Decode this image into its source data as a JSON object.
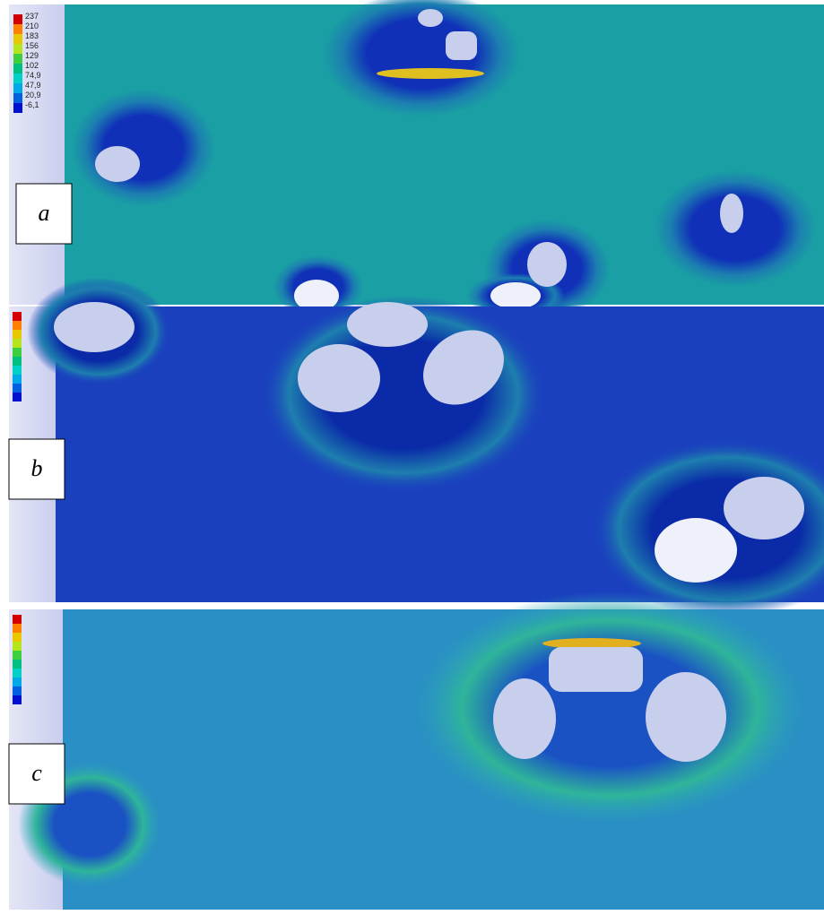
{
  "panels": [
    {
      "label": "a",
      "legend": [
        "237",
        "210",
        "183",
        "156",
        "129",
        "102",
        "74,9",
        "47,9",
        "20,9",
        "-6,1"
      ]
    },
    {
      "label": "b"
    },
    {
      "label": "c"
    }
  ]
}
